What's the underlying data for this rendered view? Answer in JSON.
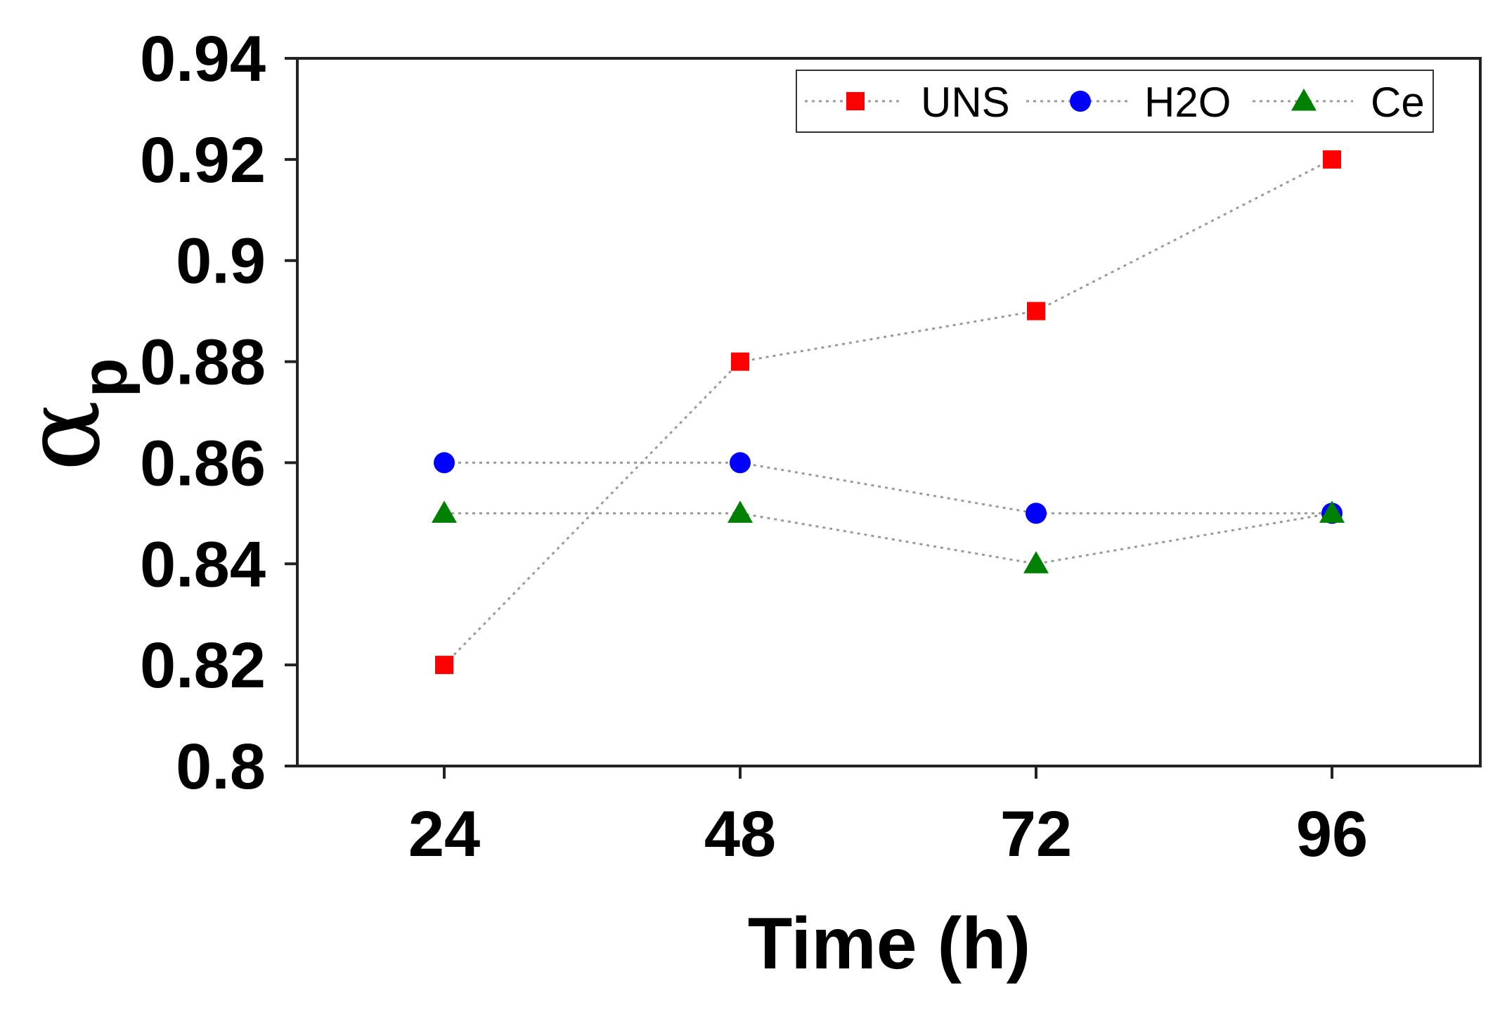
{
  "chart_data": {
    "type": "line",
    "title": "",
    "xlabel": "Time (h)",
    "ylabel": {
      "symbol": "α",
      "subscript": "p"
    },
    "categories": [
      "24",
      "48",
      "72",
      "96"
    ],
    "x": [
      24,
      48,
      72,
      96
    ],
    "ylim": [
      0.8,
      0.94
    ],
    "yticks": [
      "0.8",
      "0.82",
      "0.84",
      "0.86",
      "0.88",
      "0.9",
      "0.92",
      "0.94"
    ],
    "grid": false,
    "legend_position": "top-right",
    "series": [
      {
        "name": "UNS",
        "marker": "square",
        "color": "#ff0000",
        "values": [
          0.82,
          0.88,
          0.89,
          0.92
        ]
      },
      {
        "name": "H2O",
        "marker": "circle",
        "color": "#0000ff",
        "values": [
          0.86,
          0.86,
          0.85,
          0.85
        ]
      },
      {
        "name": "Ce",
        "marker": "triangle",
        "color": "#008000",
        "values": [
          0.85,
          0.85,
          0.84,
          0.85
        ]
      }
    ],
    "line_style": {
      "color": "#9a9a9a",
      "dash": "dotted"
    }
  }
}
